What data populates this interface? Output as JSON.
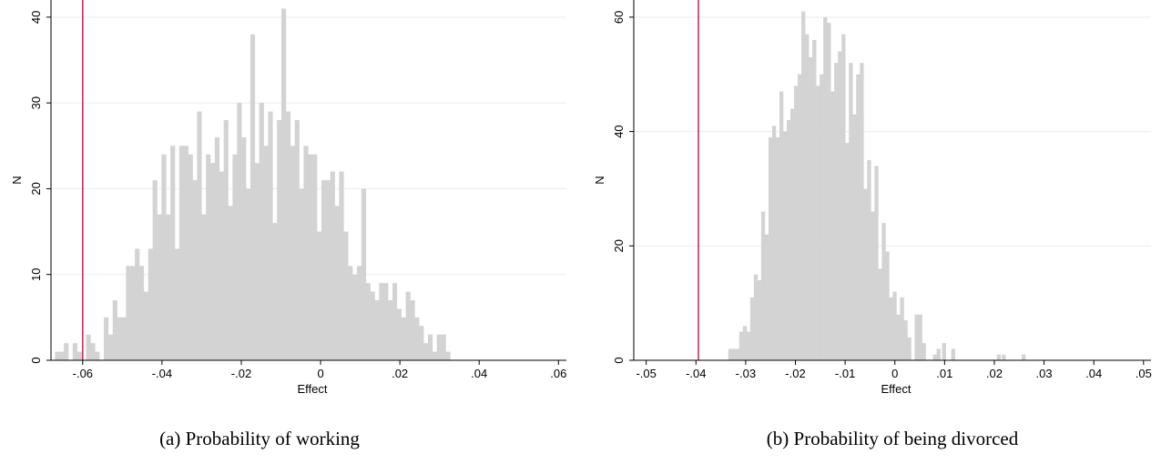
{
  "chart_data": [
    {
      "type": "bar",
      "subtype": "histogram",
      "xlabel": "Effect",
      "ylabel": "N",
      "xlim": [
        -0.068,
        0.062
      ],
      "ylim": [
        0,
        42
      ],
      "xticks": [
        -0.06,
        -0.04,
        -0.02,
        0,
        0.02,
        0.04,
        0.06
      ],
      "xtick_labels": [
        "-.06",
        "-.04",
        "-.02",
        "0",
        ".02",
        ".04",
        ".06"
      ],
      "yticks": [
        0,
        10,
        20,
        30,
        40
      ],
      "ytick_labels": [
        "0",
        "10",
        "20",
        "30",
        "40"
      ],
      "grid": "horizontal",
      "bar_color": "#d3d3d3",
      "reference_line": {
        "x": -0.06,
        "color": "#c0114e"
      },
      "bin_start": -0.067,
      "bin_width": 0.00112,
      "values": [
        1,
        1,
        2,
        0,
        2,
        1,
        0,
        3,
        2,
        1,
        0,
        5,
        3,
        7,
        5,
        5,
        11,
        11,
        13,
        11,
        8,
        13,
        21,
        17,
        24,
        17,
        25,
        13,
        25,
        25,
        24,
        21,
        29,
        17,
        24,
        23,
        26,
        22,
        28,
        18,
        24,
        30,
        26,
        20,
        38,
        23,
        30,
        25,
        29,
        16,
        28,
        41,
        29,
        25,
        28,
        20,
        25,
        24,
        24,
        15,
        21,
        21,
        22,
        18,
        22,
        15,
        11,
        10,
        11,
        20,
        9,
        8,
        7,
        9,
        9,
        7,
        9,
        6,
        5,
        8,
        7,
        5,
        4,
        2,
        3,
        1,
        3,
        3,
        1,
        0,
        0,
        0,
        0,
        0,
        0,
        0,
        0,
        0,
        0,
        0,
        0,
        0,
        0,
        0,
        0,
        0,
        0,
        0,
        0,
        0,
        0,
        0,
        0,
        0,
        0,
        0
      ]
    },
    {
      "type": "bar",
      "subtype": "histogram",
      "xlabel": "Effect",
      "ylabel": "N",
      "xlim": [
        -0.0525,
        0.0515
      ],
      "ylim": [
        0,
        63
      ],
      "xticks": [
        -0.05,
        -0.04,
        -0.03,
        -0.02,
        -0.01,
        0,
        0.01,
        0.02,
        0.03,
        0.04,
        0.05
      ],
      "xtick_labels": [
        "-.05",
        "-.04",
        "-.03",
        "-.02",
        "-.01",
        "0",
        ".01",
        ".02",
        ".03",
        ".04",
        ".05"
      ],
      "yticks": [
        0,
        20,
        40,
        60
      ],
      "ytick_labels": [
        "0",
        "20",
        "40",
        "60"
      ],
      "grid": "horizontal",
      "bar_color": "#d3d3d3",
      "reference_line": {
        "x": -0.0395,
        "color": "#c0114e"
      },
      "bin_start": -0.0335,
      "bin_width": 0.000735,
      "values": [
        2,
        2,
        2,
        5,
        6,
        5,
        11,
        15,
        14,
        26,
        22,
        39,
        41,
        39,
        47,
        40,
        42,
        44,
        48,
        50,
        61,
        57,
        53,
        56,
        48,
        50,
        60,
        59,
        47,
        52,
        54,
        57,
        38,
        52,
        43,
        50,
        52,
        30,
        35,
        26,
        34,
        16,
        24,
        19,
        11,
        12,
        8,
        11,
        7,
        4,
        0,
        8,
        8,
        3,
        0,
        0,
        1,
        2,
        0,
        0,
        0,
        2,
        0,
        0,
        0,
        0,
        0,
        0,
        0,
        0,
        0,
        0,
        0,
        0,
        0,
        0,
        0,
        0,
        0,
        0,
        0,
        0,
        0,
        0,
        0,
        0,
        0,
        0,
        0,
        0,
        0,
        0,
        0,
        0,
        0,
        0,
        0,
        0,
        0,
        0,
        0,
        0,
        0,
        0,
        0,
        0,
        0,
        0,
        0,
        0,
        0,
        0,
        0,
        0,
        0,
        0,
        0,
        0,
        0,
        0
      ],
      "extra_bars": [
        {
          "x": 0.0095,
          "value": 3
        },
        {
          "x": 0.0205,
          "value": 1
        },
        {
          "x": 0.0215,
          "value": 1
        },
        {
          "x": 0.0255,
          "value": 1
        }
      ]
    }
  ],
  "captions": {
    "a": "(a) Probability of working",
    "b": "(b) Probability of being divorced"
  }
}
